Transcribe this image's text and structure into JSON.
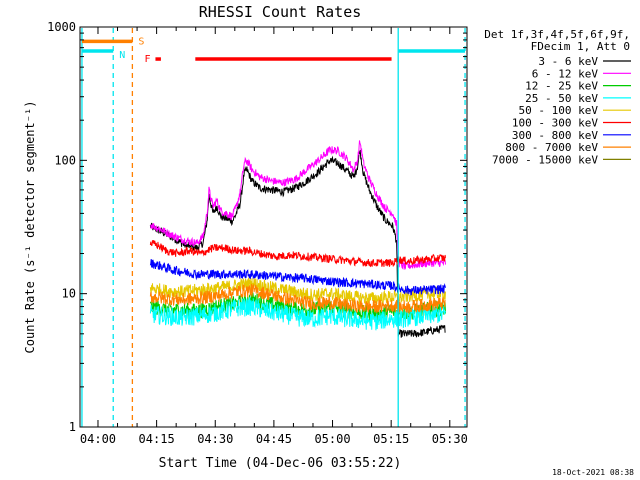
{
  "chart_data": {
    "type": "line",
    "title": "RHESSI Count Rates",
    "xlabel": "Start Time (04-Dec-06 03:55:22)",
    "ylabel": "Count Rate (s⁻¹ detector segment⁻¹)",
    "y_scale": "log",
    "ylim": [
      1,
      1000
    ],
    "xlim_minutes_after_start": [
      0,
      99
    ],
    "x_ticks": [
      {
        "t": 4.6,
        "label": "04:00"
      },
      {
        "t": 19.6,
        "label": "04:15"
      },
      {
        "t": 34.6,
        "label": "04:30"
      },
      {
        "t": 49.6,
        "label": "04:45"
      },
      {
        "t": 64.6,
        "label": "05:00"
      },
      {
        "t": 79.6,
        "label": "05:15"
      },
      {
        "t": 94.6,
        "label": "05:30"
      }
    ],
    "y_ticks": [
      {
        "v": 1,
        "label": "1"
      },
      {
        "v": 10,
        "label": "10"
      },
      {
        "v": 100,
        "label": "100"
      },
      {
        "v": 1000,
        "label": "1000"
      }
    ],
    "legend": {
      "position": "right",
      "header": [
        "Det 1f,3f,4f,5f,6f,9f,",
        "FDecim 1, Att 0"
      ],
      "entries": [
        {
          "label": "3 - 6 keV",
          "color": "#000000"
        },
        {
          "label": "6 - 12 keV",
          "color": "#ff00ff"
        },
        {
          "label": "12 - 25 keV",
          "color": "#00cc00"
        },
        {
          "label": "25 - 50 keV",
          "color": "#00ffff"
        },
        {
          "label": "50 - 100 keV",
          "color": "#e6c800"
        },
        {
          "label": "100 - 300 keV",
          "color": "#ff0000"
        },
        {
          "label": "300 - 800 keV",
          "color": "#0000ff"
        },
        {
          "label": "800 - 7000 keV",
          "color": "#ff8000"
        },
        {
          "label": "7000 - 15000 keV",
          "color": "#808000"
        }
      ]
    },
    "series": [
      {
        "name": "3 - 6 keV",
        "color": "#000000",
        "noise": 0.03,
        "points": [
          [
            18,
            32
          ],
          [
            21,
            29
          ],
          [
            24,
            26
          ],
          [
            27,
            23
          ],
          [
            30,
            22
          ],
          [
            31.5,
            24
          ],
          [
            32.5,
            35
          ],
          [
            33,
            55
          ],
          [
            34,
            40
          ],
          [
            35,
            45
          ],
          [
            36,
            38
          ],
          [
            39,
            35
          ],
          [
            40,
            40
          ],
          [
            41,
            48
          ],
          [
            42,
            80
          ],
          [
            42.7,
            85
          ],
          [
            44,
            70
          ],
          [
            46,
            62
          ],
          [
            49,
            60
          ],
          [
            52,
            58
          ],
          [
            55,
            62
          ],
          [
            58,
            70
          ],
          [
            61,
            82
          ],
          [
            64,
            100
          ],
          [
            66,
            95
          ],
          [
            68,
            85
          ],
          [
            70,
            75
          ],
          [
            71,
            90
          ],
          [
            71.6,
            120
          ],
          [
            72.5,
            80
          ],
          [
            74,
            60
          ],
          [
            76,
            45
          ],
          [
            78,
            36
          ],
          [
            80,
            32
          ],
          [
            81,
            25
          ],
          [
            81.4,
            5
          ],
          [
            83,
            5
          ],
          [
            86,
            5
          ],
          [
            89,
            5.2
          ],
          [
            92,
            5.4
          ],
          [
            93.5,
            5.5
          ]
        ]
      },
      {
        "name": "6 - 12 keV",
        "color": "#ff00ff",
        "noise": 0.03,
        "points": [
          [
            18,
            33
          ],
          [
            21,
            30
          ],
          [
            24,
            27
          ],
          [
            27,
            25
          ],
          [
            30,
            24
          ],
          [
            31.5,
            27
          ],
          [
            32.5,
            40
          ],
          [
            33,
            60
          ],
          [
            34,
            45
          ],
          [
            35,
            50
          ],
          [
            36,
            42
          ],
          [
            39,
            38
          ],
          [
            40,
            45
          ],
          [
            41,
            58
          ],
          [
            42,
            95
          ],
          [
            42.7,
            100
          ],
          [
            44,
            85
          ],
          [
            46,
            75
          ],
          [
            49,
            70
          ],
          [
            52,
            68
          ],
          [
            55,
            72
          ],
          [
            58,
            85
          ],
          [
            61,
            100
          ],
          [
            64,
            120
          ],
          [
            66,
            118
          ],
          [
            68,
            105
          ],
          [
            70,
            85
          ],
          [
            71,
            100
          ],
          [
            71.6,
            140
          ],
          [
            72.5,
            95
          ],
          [
            74,
            72
          ],
          [
            76,
            55
          ],
          [
            78,
            44
          ],
          [
            80,
            40
          ],
          [
            81,
            33
          ],
          [
            81.4,
            17
          ],
          [
            83,
            16
          ],
          [
            86,
            16.5
          ],
          [
            89,
            17
          ],
          [
            92,
            17
          ],
          [
            93.5,
            17
          ]
        ]
      },
      {
        "name": "12 - 25 keV",
        "color": "#00cc00",
        "noise": 0.06,
        "points": [
          [
            18,
            8
          ],
          [
            22,
            7.6
          ],
          [
            26,
            7.5
          ],
          [
            30,
            7.4
          ],
          [
            35,
            8
          ],
          [
            40,
            8.4
          ],
          [
            44,
            9
          ],
          [
            48,
            8.4
          ],
          [
            52,
            8
          ],
          [
            56,
            7.6
          ],
          [
            60,
            7.6
          ],
          [
            64,
            8
          ],
          [
            68,
            7.5
          ],
          [
            72,
            7.2
          ],
          [
            76,
            7.1
          ],
          [
            80,
            7.4
          ],
          [
            81.5,
            7.2
          ],
          [
            84,
            7.2
          ],
          [
            88,
            7.5
          ],
          [
            92,
            7.8
          ],
          [
            93.5,
            7.8
          ]
        ]
      },
      {
        "name": "25 - 50 keV",
        "color": "#00ffff",
        "noise": 0.07,
        "points": [
          [
            18,
            7
          ],
          [
            22,
            6.8
          ],
          [
            26,
            6.6
          ],
          [
            30,
            6.8
          ],
          [
            35,
            7.2
          ],
          [
            40,
            7.8
          ],
          [
            44,
            8
          ],
          [
            48,
            7.4
          ],
          [
            52,
            7
          ],
          [
            56,
            6.6
          ],
          [
            60,
            6.5
          ],
          [
            64,
            6.8
          ],
          [
            68,
            6.5
          ],
          [
            72,
            6.3
          ],
          [
            76,
            6.2
          ],
          [
            80,
            6.5
          ],
          [
            81.5,
            6.4
          ],
          [
            84,
            6.6
          ],
          [
            88,
            6.8
          ],
          [
            92,
            7
          ],
          [
            93.5,
            7
          ]
        ]
      },
      {
        "name": "50 - 100 keV",
        "color": "#e6c800",
        "noise": 0.05,
        "points": [
          [
            18,
            11
          ],
          [
            22,
            10.5
          ],
          [
            26,
            10.3
          ],
          [
            30,
            10.6
          ],
          [
            35,
            11
          ],
          [
            40,
            11.5
          ],
          [
            44,
            12
          ],
          [
            48,
            11.2
          ],
          [
            52,
            10.7
          ],
          [
            56,
            10.1
          ],
          [
            60,
            9.8
          ],
          [
            64,
            10
          ],
          [
            68,
            9.6
          ],
          [
            72,
            9.3
          ],
          [
            76,
            9.2
          ],
          [
            80,
            9.5
          ],
          [
            81.5,
            9.3
          ],
          [
            84,
            9.6
          ],
          [
            88,
            9.9
          ],
          [
            92,
            10
          ],
          [
            93.5,
            10
          ]
        ]
      },
      {
        "name": "100 - 300 keV",
        "color": "#ff0000",
        "noise": 0.03,
        "points": [
          [
            18,
            24
          ],
          [
            20,
            23
          ],
          [
            22,
            21
          ],
          [
            25,
            20
          ],
          [
            28,
            21
          ],
          [
            31,
            20
          ],
          [
            34,
            22
          ],
          [
            37,
            22
          ],
          [
            40,
            21
          ],
          [
            43,
            21
          ],
          [
            46,
            20
          ],
          [
            50,
            19
          ],
          [
            54,
            19.5
          ],
          [
            58,
            19
          ],
          [
            62,
            18.5
          ],
          [
            66,
            18
          ],
          [
            70,
            17.5
          ],
          [
            74,
            17
          ],
          [
            78,
            17
          ],
          [
            80,
            17
          ],
          [
            81.5,
            18
          ],
          [
            84,
            17.5
          ],
          [
            88,
            18
          ],
          [
            92,
            18.5
          ],
          [
            93.5,
            18.5
          ]
        ]
      },
      {
        "name": "300 - 800 keV",
        "color": "#0000ff",
        "noise": 0.035,
        "points": [
          [
            18,
            17
          ],
          [
            21,
            16
          ],
          [
            24,
            15
          ],
          [
            27,
            14.5
          ],
          [
            30,
            14
          ],
          [
            34,
            14
          ],
          [
            38,
            14
          ],
          [
            42,
            14
          ],
          [
            46,
            13.8
          ],
          [
            50,
            13.5
          ],
          [
            54,
            13.2
          ],
          [
            58,
            13
          ],
          [
            62,
            12.6
          ],
          [
            66,
            12.2
          ],
          [
            70,
            12
          ],
          [
            74,
            11.8
          ],
          [
            78,
            11.5
          ],
          [
            80,
            11.5
          ],
          [
            81.5,
            11
          ],
          [
            84,
            10.6
          ],
          [
            88,
            10.6
          ],
          [
            92,
            10.8
          ],
          [
            93.5,
            10.8
          ]
        ]
      },
      {
        "name": "800 - 7000 keV",
        "color": "#ff8000",
        "noise": 0.05,
        "points": [
          [
            18,
            9.5
          ],
          [
            22,
            9.2
          ],
          [
            26,
            9
          ],
          [
            30,
            9.2
          ],
          [
            35,
            9.6
          ],
          [
            40,
            10.4
          ],
          [
            44,
            10.6
          ],
          [
            48,
            10
          ],
          [
            52,
            9.3
          ],
          [
            56,
            8.7
          ],
          [
            60,
            8.4
          ],
          [
            64,
            8.6
          ],
          [
            68,
            8.2
          ],
          [
            72,
            8
          ],
          [
            76,
            8
          ],
          [
            80,
            8.2
          ],
          [
            81.5,
            8
          ],
          [
            84,
            8
          ],
          [
            88,
            8.2
          ],
          [
            92,
            8.4
          ],
          [
            93.5,
            8.4
          ]
        ]
      },
      {
        "name": "7000 - 15000 keV",
        "color": "#808000",
        "noise": 0.02,
        "points": []
      }
    ],
    "attenuator_bars": [
      {
        "label": "S",
        "color": "#ff8000",
        "y": 780,
        "segments": [
          [
            0.5,
            13.4
          ]
        ]
      },
      {
        "label": "F",
        "color": "#ff0000",
        "y": 575,
        "segments": [
          [
            19.3,
            20.7
          ],
          [
            29.5,
            79.7
          ]
        ]
      },
      {
        "label": "N",
        "color": "#00e5ee",
        "y": 660,
        "segments": [
          [
            0.5,
            8.5
          ],
          [
            81.5,
            98.5
          ]
        ]
      }
    ],
    "vertical_markers": [
      {
        "t": 0.5,
        "color": "#00e5ee",
        "style": "solid"
      },
      {
        "t": 8.5,
        "color": "#00e5ee",
        "style": "dashed"
      },
      {
        "t": 13.4,
        "color": "#ff8000",
        "style": "dashed"
      },
      {
        "t": 81.4,
        "color": "#00e5ee",
        "style": "solid"
      },
      {
        "t": 98.5,
        "color": "#00e5ee",
        "style": "dashed"
      }
    ]
  },
  "footer": {
    "timestamp": "18-Oct-2021 08:38"
  }
}
